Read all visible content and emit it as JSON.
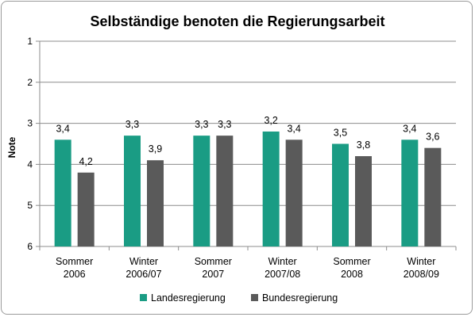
{
  "chart_data": {
    "type": "bar",
    "title": "Selbständige benoten die Regierungsarbeit",
    "ylabel": "Note",
    "xlabel": "",
    "ylim": [
      1,
      6
    ],
    "y_inverted": true,
    "yticks": [
      "1",
      "2",
      "3",
      "4",
      "5",
      "6"
    ],
    "grid": true,
    "legend_position": "bottom",
    "categories": [
      [
        "Sommer",
        "2006"
      ],
      [
        "Winter",
        "2006/07"
      ],
      [
        "Sommer",
        "2007"
      ],
      [
        "Winter",
        "2007/08"
      ],
      [
        "Sommer",
        "2008"
      ],
      [
        "Winter",
        "2008/09"
      ]
    ],
    "series": [
      {
        "name": "Landesregierung",
        "color": "#1a9c84",
        "values": [
          3.4,
          3.3,
          3.3,
          3.2,
          3.5,
          3.4
        ],
        "labels": [
          "3,4",
          "3,3",
          "3,3",
          "3,2",
          "3,5",
          "3,4"
        ]
      },
      {
        "name": "Bundesregierung",
        "color": "#5a5a5a",
        "values": [
          4.2,
          3.9,
          3.3,
          3.4,
          3.8,
          3.6
        ],
        "labels": [
          "4,2",
          "3,9",
          "3,3",
          "3,4",
          "3,8",
          "3,6"
        ]
      }
    ]
  }
}
